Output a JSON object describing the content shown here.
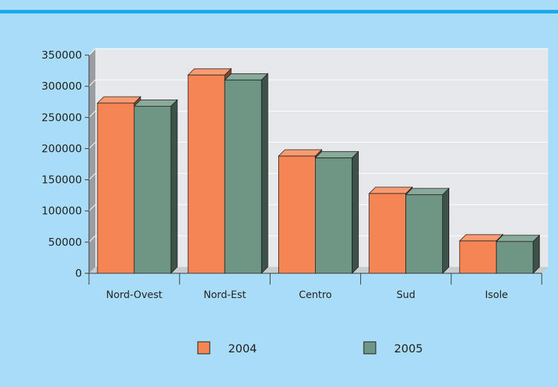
{
  "chart_data": {
    "type": "bar",
    "categories": [
      "Nord-Ovest",
      "Nord-Est",
      "Centro",
      "Sud",
      "Isole"
    ],
    "series": [
      {
        "name": "2004",
        "values": [
          273000,
          318000,
          188000,
          128000,
          52000
        ]
      },
      {
        "name": "2005",
        "values": [
          268000,
          310000,
          185000,
          126000,
          51000
        ]
      }
    ],
    "title": "",
    "xlabel": "",
    "ylabel": "",
    "ylim": [
      0,
      350000
    ],
    "yticks": [
      "0",
      "50000",
      "100000",
      "150000",
      "200000",
      "250000",
      "300000",
      "350000"
    ],
    "grid": true,
    "legend_position": "bottom"
  },
  "colors": {
    "background": "#a8dcf7",
    "top_stripe": "#1aa9ea",
    "plot_area": "#e5e7ea",
    "floor": "#c9cccf",
    "grid": "#ffffff",
    "axis": "#333333",
    "series_2004": "#f58554",
    "series_2005": "#6f9684"
  }
}
